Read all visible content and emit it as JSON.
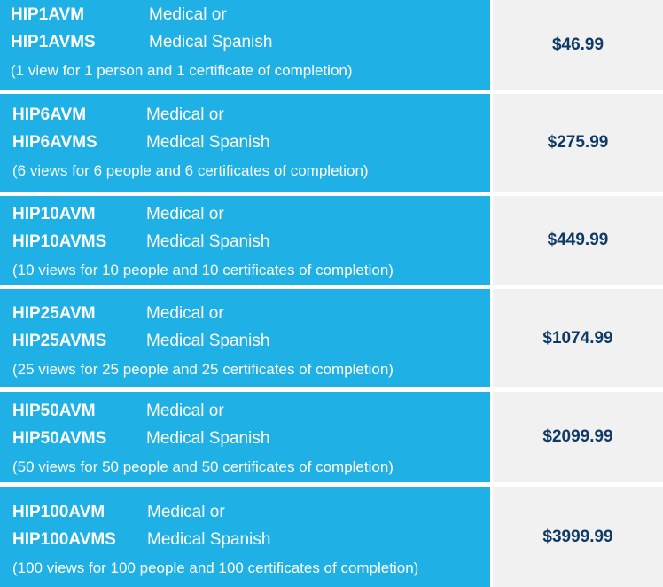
{
  "rows": [
    {
      "code1": "HIP1AVM",
      "desc1": "Medical or",
      "code2": "HIP1AVMS",
      "desc2": "Medical Spanish",
      "note": "(1 view for 1 person and 1 certificate of completion)",
      "price": "$46.99"
    },
    {
      "code1": "HIP6AVM",
      "desc1": "Medical or",
      "code2": "HIP6AVMS",
      "desc2": "Medical Spanish",
      "note": "(6 views for 6 people and 6 certificates of completion)",
      "price": "$275.99"
    },
    {
      "code1": "HIP10AVM",
      "desc1": "Medical or",
      "code2": "HIP10AVMS",
      "desc2": "Medical Spanish",
      "note": "(10 views for 10 people and 10 certificates of completion)",
      "price": "$449.99"
    },
    {
      "code1": "HIP25AVM",
      "desc1": "Medical or",
      "code2": "HIP25AVMS",
      "desc2": "Medical Spanish",
      "note": "(25 views for 25 people and 25 certificates of completion)",
      "price": "$1074.99"
    },
    {
      "code1": "HIP50AVM",
      "desc1": "Medical or",
      "code2": "HIP50AVMS",
      "desc2": "Medical Spanish",
      "note": "(50 views for 50 people and 50 certificates of completion)",
      "price": "$2099.99"
    },
    {
      "code1": "HIP100AVM",
      "desc1": "Medical or",
      "code2": "HIP100AVMS",
      "desc2": "Medical Spanish",
      "note": "(100 views for 100 people and 100 certificates of completion)",
      "price": "$3999.99"
    }
  ],
  "colors": {
    "left_bg": "#1fb0e6",
    "right_bg": "#f1f1f1",
    "price_text": "#0e3a66",
    "left_text": "#ffffff"
  }
}
